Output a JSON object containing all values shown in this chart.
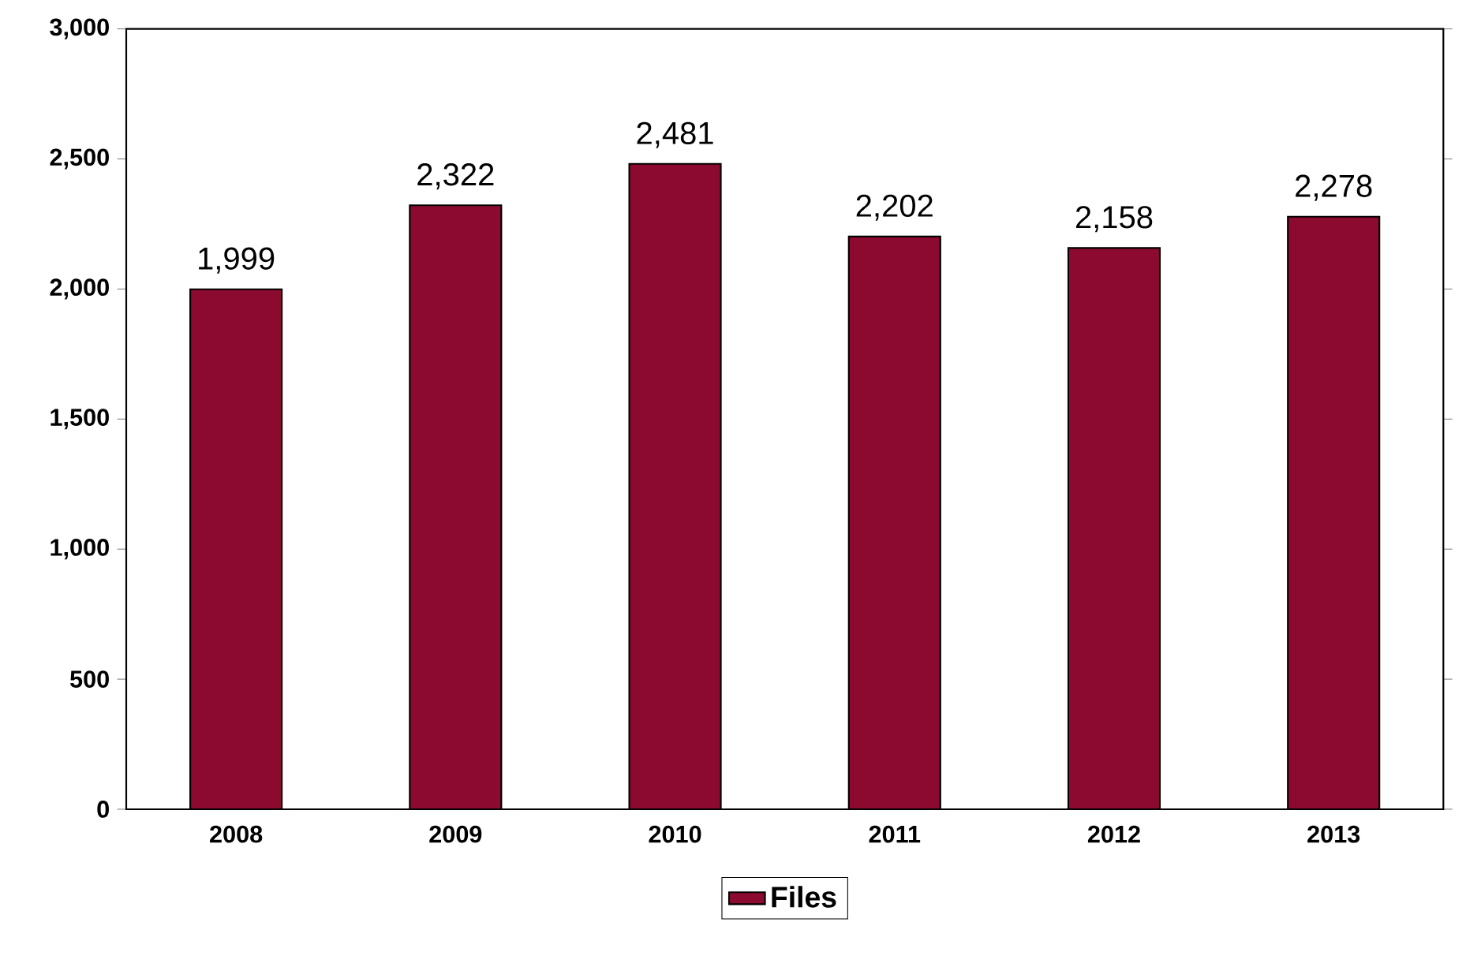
{
  "chart_data": {
    "type": "bar",
    "categories": [
      "2008",
      "2009",
      "2010",
      "2011",
      "2012",
      "2013"
    ],
    "series": [
      {
        "name": "Files",
        "color": "#8c0a30",
        "values": [
          1999,
          2322,
          2481,
          2202,
          2158,
          2278
        ],
        "value_labels": [
          "1,999",
          "2,322",
          "2,481",
          "2,202",
          "2,158",
          "2,278"
        ]
      }
    ],
    "ylim": [
      0,
      3000
    ],
    "yticks": [
      0,
      {
        "value": 500,
        "label": "500"
      },
      {
        "value": 1000,
        "label": "1,000"
      },
      {
        "value": 1500,
        "label": "1,500"
      },
      {
        "value": 2000,
        "label": "2,000"
      },
      {
        "value": 2500,
        "label": "2,500"
      },
      {
        "value": 3000,
        "label": "3,000"
      }
    ],
    "legend": "bottom",
    "grid": false
  }
}
